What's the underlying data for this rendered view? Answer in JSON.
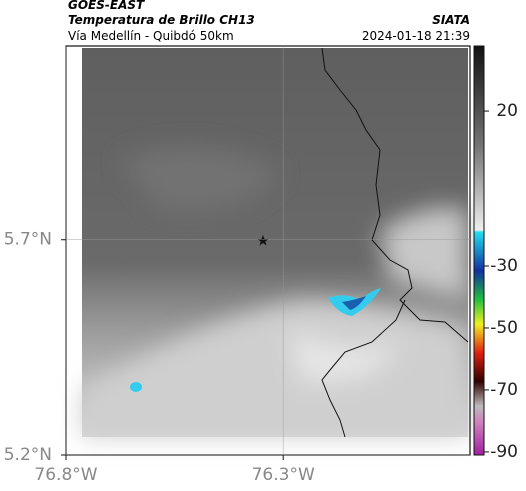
{
  "header": {
    "satellite": "GOES-EAST",
    "product": "Temperatura de Brillo CH13",
    "region": "Vía Medellín - Quibdó 50km",
    "source": "SIATA",
    "datetime": "2024-01-18 21:39"
  },
  "map": {
    "xlim": [
      -76.8,
      -75.87
    ],
    "ylim": [
      5.2,
      6.15
    ],
    "xticks": [
      {
        "value": -76.8,
        "label": "76.8°W"
      },
      {
        "value": -76.3,
        "label": "76.3°W"
      }
    ],
    "yticks": [
      {
        "value": 5.2,
        "label": "5.2°N"
      },
      {
        "value": 5.7,
        "label": "5.7°N"
      }
    ]
  },
  "colorbar": {
    "lim": [
      -91,
      41
    ],
    "ticks": [
      20,
      -30,
      -50,
      -70,
      -90
    ]
  }
}
